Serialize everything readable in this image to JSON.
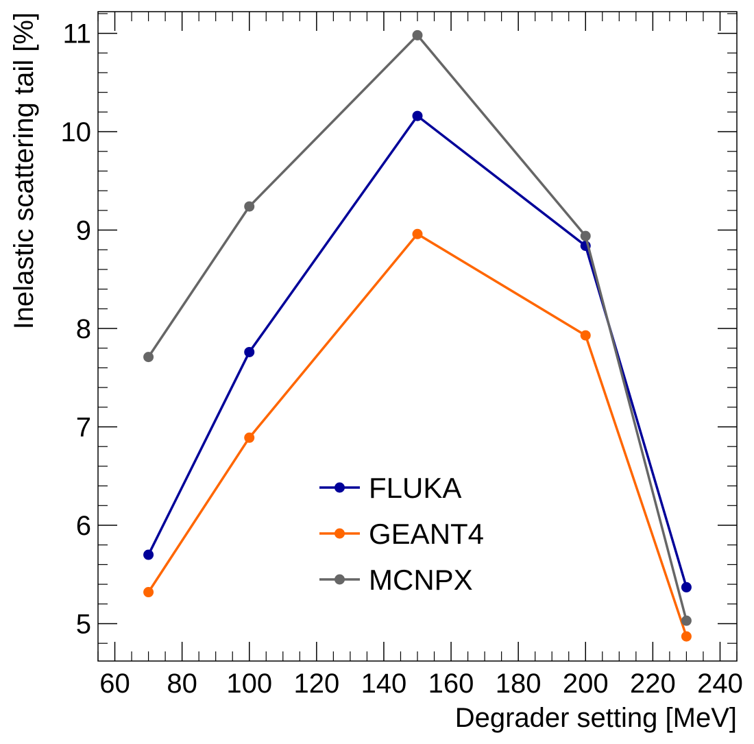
{
  "chart_data": {
    "type": "line",
    "title": "",
    "xlabel": "Degrader setting [MeV]",
    "ylabel": "Inelastic scattering tail [%]",
    "xlim": [
      55,
      245
    ],
    "ylim": [
      4.62,
      11.22
    ],
    "xticks": [
      60,
      80,
      100,
      120,
      140,
      160,
      180,
      200,
      220,
      240
    ],
    "xtick_labels": [
      "60",
      "80",
      "100",
      "120",
      "140",
      "160",
      "180",
      "200",
      "220",
      "240"
    ],
    "yticks": [
      5,
      6,
      7,
      8,
      9,
      10,
      11
    ],
    "ytick_labels": [
      "5",
      "6",
      "7",
      "8",
      "9",
      "10",
      "11"
    ],
    "x": [
      70,
      100,
      150,
      200,
      230
    ],
    "series": [
      {
        "name": "FLUKA",
        "color": "#000099",
        "values": [
          5.7,
          7.76,
          10.16,
          8.84,
          5.37
        ]
      },
      {
        "name": "GEANT4",
        "color": "#ff6600",
        "values": [
          5.32,
          6.89,
          8.96,
          7.93,
          4.87
        ]
      },
      {
        "name": "MCNPX",
        "color": "#666666",
        "values": [
          7.71,
          9.24,
          10.98,
          8.94,
          5.03
        ]
      }
    ],
    "legend": {
      "position": "lower-center",
      "entries": [
        "FLUKA",
        "GEANT4",
        "MCNPX"
      ]
    },
    "grid": false
  }
}
